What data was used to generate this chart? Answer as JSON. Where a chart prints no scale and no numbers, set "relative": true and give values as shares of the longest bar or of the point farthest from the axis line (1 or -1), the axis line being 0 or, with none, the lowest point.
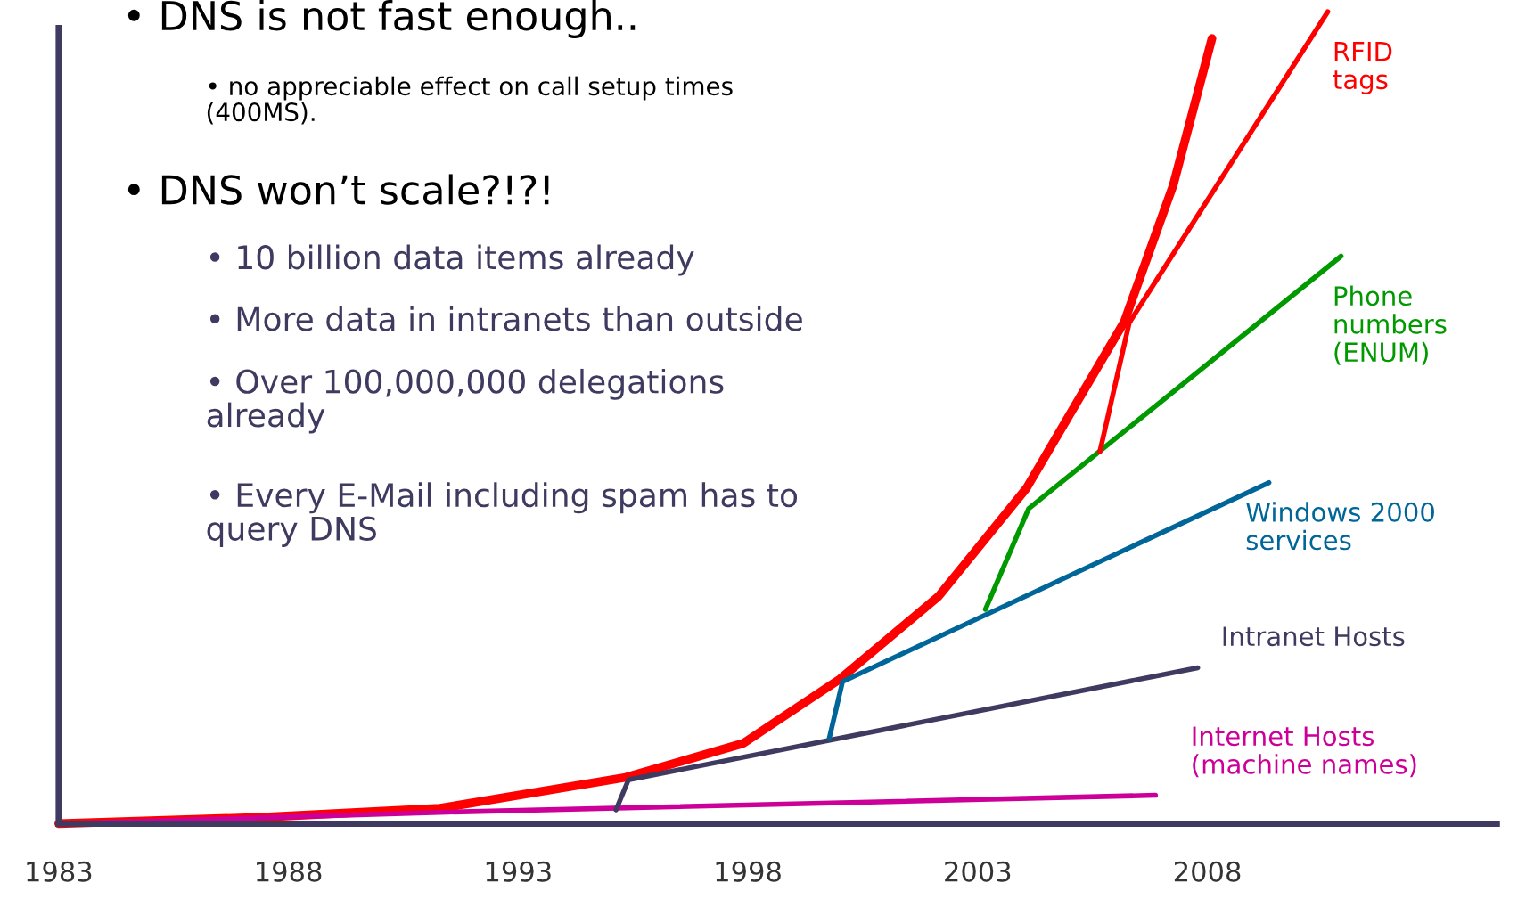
{
  "chart_data": {
    "type": "line",
    "relative": true,
    "legend": false,
    "grid": false,
    "xlim": [
      1983,
      2014.3
    ],
    "xticks": [
      1983,
      1988,
      1993,
      1998,
      2003,
      2008
    ],
    "series": [
      {
        "color": "#ff0000",
        "x": [
          1983,
          1987.47,
          1991.3,
          1995.34,
          1997.9,
          2000.0,
          2002.15,
          2004.06,
          2006.19,
          2007.26,
          2008.1
        ],
        "values": [
          0,
          0.008,
          0.019,
          0.057,
          0.099,
          0.178,
          0.28,
          0.413,
          0.618,
          0.787,
          0.967
        ]
      },
      {
        "name": "Internet Hosts\n(machine names)",
        "color": "#cc0099",
        "x": [
          1983,
          1991.3,
          2006.87
        ],
        "values": [
          0,
          0.014,
          0.035
        ]
      },
      {
        "name": "Intranet Hosts",
        "color": "#3f3a60",
        "x": [
          1995.13,
          1995.4,
          2007.79
        ],
        "values": [
          0.017,
          0.054,
          0.192
        ]
      },
      {
        "name": "Windows 2000\nservices",
        "color": "#006699",
        "x": [
          1999.77,
          2000.06,
          2009.34
        ],
        "values": [
          0.105,
          0.175,
          0.42
        ]
      },
      {
        "name": "Phone\nnumbers\n(ENUM)",
        "color": "#009900",
        "x": [
          2003.17,
          2004.11,
          2010.91
        ],
        "values": [
          0.264,
          0.388,
          0.699
        ]
      },
      {
        "name": "RFID\ntags",
        "color": "#ff0000",
        "x": [
          2005.66,
          2006.3,
          2010.62
        ],
        "values": [
          0.458,
          0.617,
          1.0
        ]
      }
    ],
    "annotations": [
      "• DNS is not fast enough..",
      "• no appreciable effect on call setup times\n(400MS).",
      "• DNS won’t scale?!?!",
      "• 10 billion data items already",
      "• More data in intranets than outside",
      "• Over 100,000,000 delegations\nalready",
      "• Every E-Mail including spam has to\nquery DNS"
    ]
  }
}
